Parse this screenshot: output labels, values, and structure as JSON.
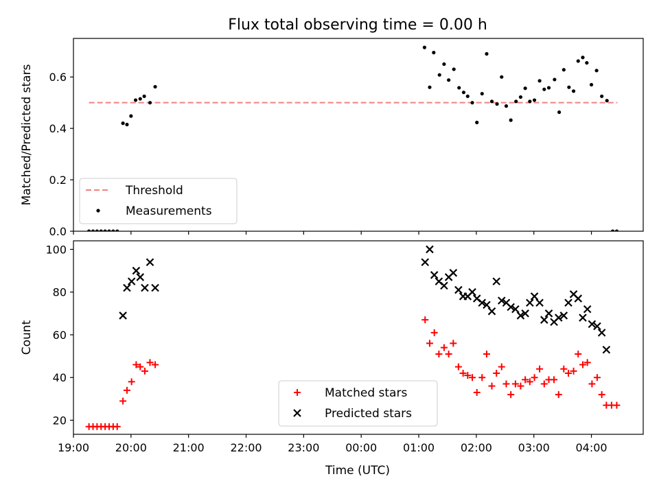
{
  "figure": {
    "title": "Flux total observing time = 0.00 h",
    "xlabel": "Time (UTC)"
  },
  "chart_data": [
    {
      "type": "scatter",
      "ylabel": "Matched/Predicted stars",
      "ylim": [
        0,
        0.75
      ],
      "yticks": [
        0.0,
        0.2,
        0.4,
        0.6
      ],
      "ytick_labels": [
        "0.0",
        "0.2",
        "0.4",
        "0.6"
      ],
      "xlim": [
        19.0,
        28.9
      ],
      "xticks": [
        19,
        20,
        21,
        22,
        23,
        24,
        25,
        26,
        27,
        28
      ],
      "xtick_labels": [
        "19:00",
        "20:00",
        "21:00",
        "22:00",
        "23:00",
        "00:00",
        "01:00",
        "02:00",
        "03:00",
        "04:00"
      ],
      "show_xtick_labels": false,
      "legend_position": "lower-left",
      "threshold": {
        "name": "Threshold",
        "value": 0.5,
        "x_range": [
          19.27,
          28.45
        ],
        "color": "#f08080"
      },
      "series": [
        {
          "name": "Measurements",
          "marker": "dot",
          "color": "#000000",
          "points": [
            [
              19.27,
              0.0
            ],
            [
              19.34,
              0.0
            ],
            [
              19.41,
              0.0
            ],
            [
              19.48,
              0.0
            ],
            [
              19.55,
              0.0
            ],
            [
              19.62,
              0.0
            ],
            [
              19.69,
              0.0
            ],
            [
              19.76,
              0.0
            ],
            [
              19.86,
              0.42
            ],
            [
              19.93,
              0.415
            ],
            [
              20.0,
              0.448
            ],
            [
              20.08,
              0.51
            ],
            [
              20.16,
              0.515
            ],
            [
              20.23,
              0.525
            ],
            [
              20.33,
              0.5
            ],
            [
              20.42,
              0.562
            ],
            [
              25.1,
              0.715
            ],
            [
              25.19,
              0.56
            ],
            [
              25.26,
              0.695
            ],
            [
              25.36,
              0.608
            ],
            [
              25.44,
              0.65
            ],
            [
              25.52,
              0.588
            ],
            [
              25.61,
              0.63
            ],
            [
              25.7,
              0.558
            ],
            [
              25.78,
              0.54
            ],
            [
              25.85,
              0.525
            ],
            [
              25.93,
              0.5
            ],
            [
              26.01,
              0.423
            ],
            [
              26.1,
              0.535
            ],
            [
              26.18,
              0.69
            ],
            [
              26.27,
              0.505
            ],
            [
              26.36,
              0.495
            ],
            [
              26.44,
              0.6
            ],
            [
              26.52,
              0.487
            ],
            [
              26.6,
              0.432
            ],
            [
              26.69,
              0.505
            ],
            [
              26.77,
              0.522
            ],
            [
              26.85,
              0.556
            ],
            [
              26.93,
              0.505
            ],
            [
              27.01,
              0.51
            ],
            [
              27.1,
              0.585
            ],
            [
              27.18,
              0.552
            ],
            [
              27.26,
              0.558
            ],
            [
              27.36,
              0.59
            ],
            [
              27.44,
              0.463
            ],
            [
              27.52,
              0.628
            ],
            [
              27.61,
              0.56
            ],
            [
              27.69,
              0.545
            ],
            [
              27.77,
              0.662
            ],
            [
              27.85,
              0.676
            ],
            [
              27.92,
              0.655
            ],
            [
              28.0,
              0.57
            ],
            [
              28.09,
              0.625
            ],
            [
              28.18,
              0.525
            ],
            [
              28.27,
              0.508
            ],
            [
              28.37,
              0.0
            ],
            [
              28.44,
              0.0
            ]
          ]
        }
      ]
    },
    {
      "type": "scatter",
      "ylabel": "Count",
      "ylim": [
        13.4,
        104
      ],
      "yticks": [
        20,
        40,
        60,
        80,
        100
      ],
      "ytick_labels": [
        "20",
        "40",
        "60",
        "80",
        "100"
      ],
      "xlim": [
        19.0,
        28.9
      ],
      "xticks": [
        19,
        20,
        21,
        22,
        23,
        24,
        25,
        26,
        27,
        28
      ],
      "xtick_labels": [
        "19:00",
        "20:00",
        "21:00",
        "22:00",
        "23:00",
        "00:00",
        "01:00",
        "02:00",
        "03:00",
        "04:00"
      ],
      "show_xtick_labels": true,
      "legend_position": "lower-center",
      "series": [
        {
          "name": "Matched stars",
          "marker": "plus",
          "color": "#ff0000",
          "points": [
            [
              19.27,
              17
            ],
            [
              19.34,
              17
            ],
            [
              19.41,
              17
            ],
            [
              19.48,
              17
            ],
            [
              19.55,
              17
            ],
            [
              19.62,
              17
            ],
            [
              19.69,
              17
            ],
            [
              19.76,
              17
            ],
            [
              19.86,
              29
            ],
            [
              19.93,
              34
            ],
            [
              20.01,
              38
            ],
            [
              20.09,
              46
            ],
            [
              20.16,
              45
            ],
            [
              20.24,
              43
            ],
            [
              20.33,
              47
            ],
            [
              20.42,
              46
            ],
            [
              25.11,
              67
            ],
            [
              25.19,
              56
            ],
            [
              25.27,
              61
            ],
            [
              25.35,
              51
            ],
            [
              25.44,
              54
            ],
            [
              25.52,
              51
            ],
            [
              25.6,
              56
            ],
            [
              25.69,
              45
            ],
            [
              25.77,
              42
            ],
            [
              25.85,
              41
            ],
            [
              25.93,
              40
            ],
            [
              26.01,
              33
            ],
            [
              26.1,
              40
            ],
            [
              26.18,
              51
            ],
            [
              26.27,
              36
            ],
            [
              26.35,
              42
            ],
            [
              26.44,
              45
            ],
            [
              26.52,
              37
            ],
            [
              26.6,
              32
            ],
            [
              26.68,
              37
            ],
            [
              26.77,
              36
            ],
            [
              26.85,
              39
            ],
            [
              26.93,
              38
            ],
            [
              27.01,
              40
            ],
            [
              27.1,
              44
            ],
            [
              27.18,
              37
            ],
            [
              27.26,
              39
            ],
            [
              27.35,
              39
            ],
            [
              27.43,
              32
            ],
            [
              27.52,
              44
            ],
            [
              27.6,
              42
            ],
            [
              27.69,
              43
            ],
            [
              27.77,
              51
            ],
            [
              27.85,
              46
            ],
            [
              27.93,
              47
            ],
            [
              28.01,
              37
            ],
            [
              28.1,
              40
            ],
            [
              28.18,
              32
            ],
            [
              28.26,
              27
            ],
            [
              28.35,
              27
            ],
            [
              28.44,
              27
            ]
          ]
        },
        {
          "name": "Predicted stars",
          "marker": "x",
          "color": "#000000",
          "points": [
            [
              19.86,
              69
            ],
            [
              19.93,
              82
            ],
            [
              20.01,
              85
            ],
            [
              20.09,
              90
            ],
            [
              20.16,
              87
            ],
            [
              20.24,
              82
            ],
            [
              20.33,
              94
            ],
            [
              20.42,
              82
            ],
            [
              25.11,
              94
            ],
            [
              25.19,
              100
            ],
            [
              25.27,
              88
            ],
            [
              25.35,
              85
            ],
            [
              25.44,
              83
            ],
            [
              25.52,
              87
            ],
            [
              25.6,
              89
            ],
            [
              25.69,
              81
            ],
            [
              25.77,
              78
            ],
            [
              25.85,
              78
            ],
            [
              25.93,
              80
            ],
            [
              26.01,
              77
            ],
            [
              26.1,
              75
            ],
            [
              26.18,
              74
            ],
            [
              26.27,
              71
            ],
            [
              26.35,
              85
            ],
            [
              26.44,
              76
            ],
            [
              26.52,
              75
            ],
            [
              26.6,
              73
            ],
            [
              26.68,
              72
            ],
            [
              26.77,
              69
            ],
            [
              26.85,
              70
            ],
            [
              26.93,
              75
            ],
            [
              27.01,
              78
            ],
            [
              27.1,
              75
            ],
            [
              27.18,
              67
            ],
            [
              27.26,
              70
            ],
            [
              27.35,
              66
            ],
            [
              27.43,
              68
            ],
            [
              27.52,
              69
            ],
            [
              27.6,
              75
            ],
            [
              27.69,
              79
            ],
            [
              27.77,
              77
            ],
            [
              27.85,
              68
            ],
            [
              27.93,
              72
            ],
            [
              28.01,
              65
            ],
            [
              28.1,
              64
            ],
            [
              28.18,
              61
            ],
            [
              28.26,
              53
            ]
          ]
        }
      ]
    }
  ]
}
